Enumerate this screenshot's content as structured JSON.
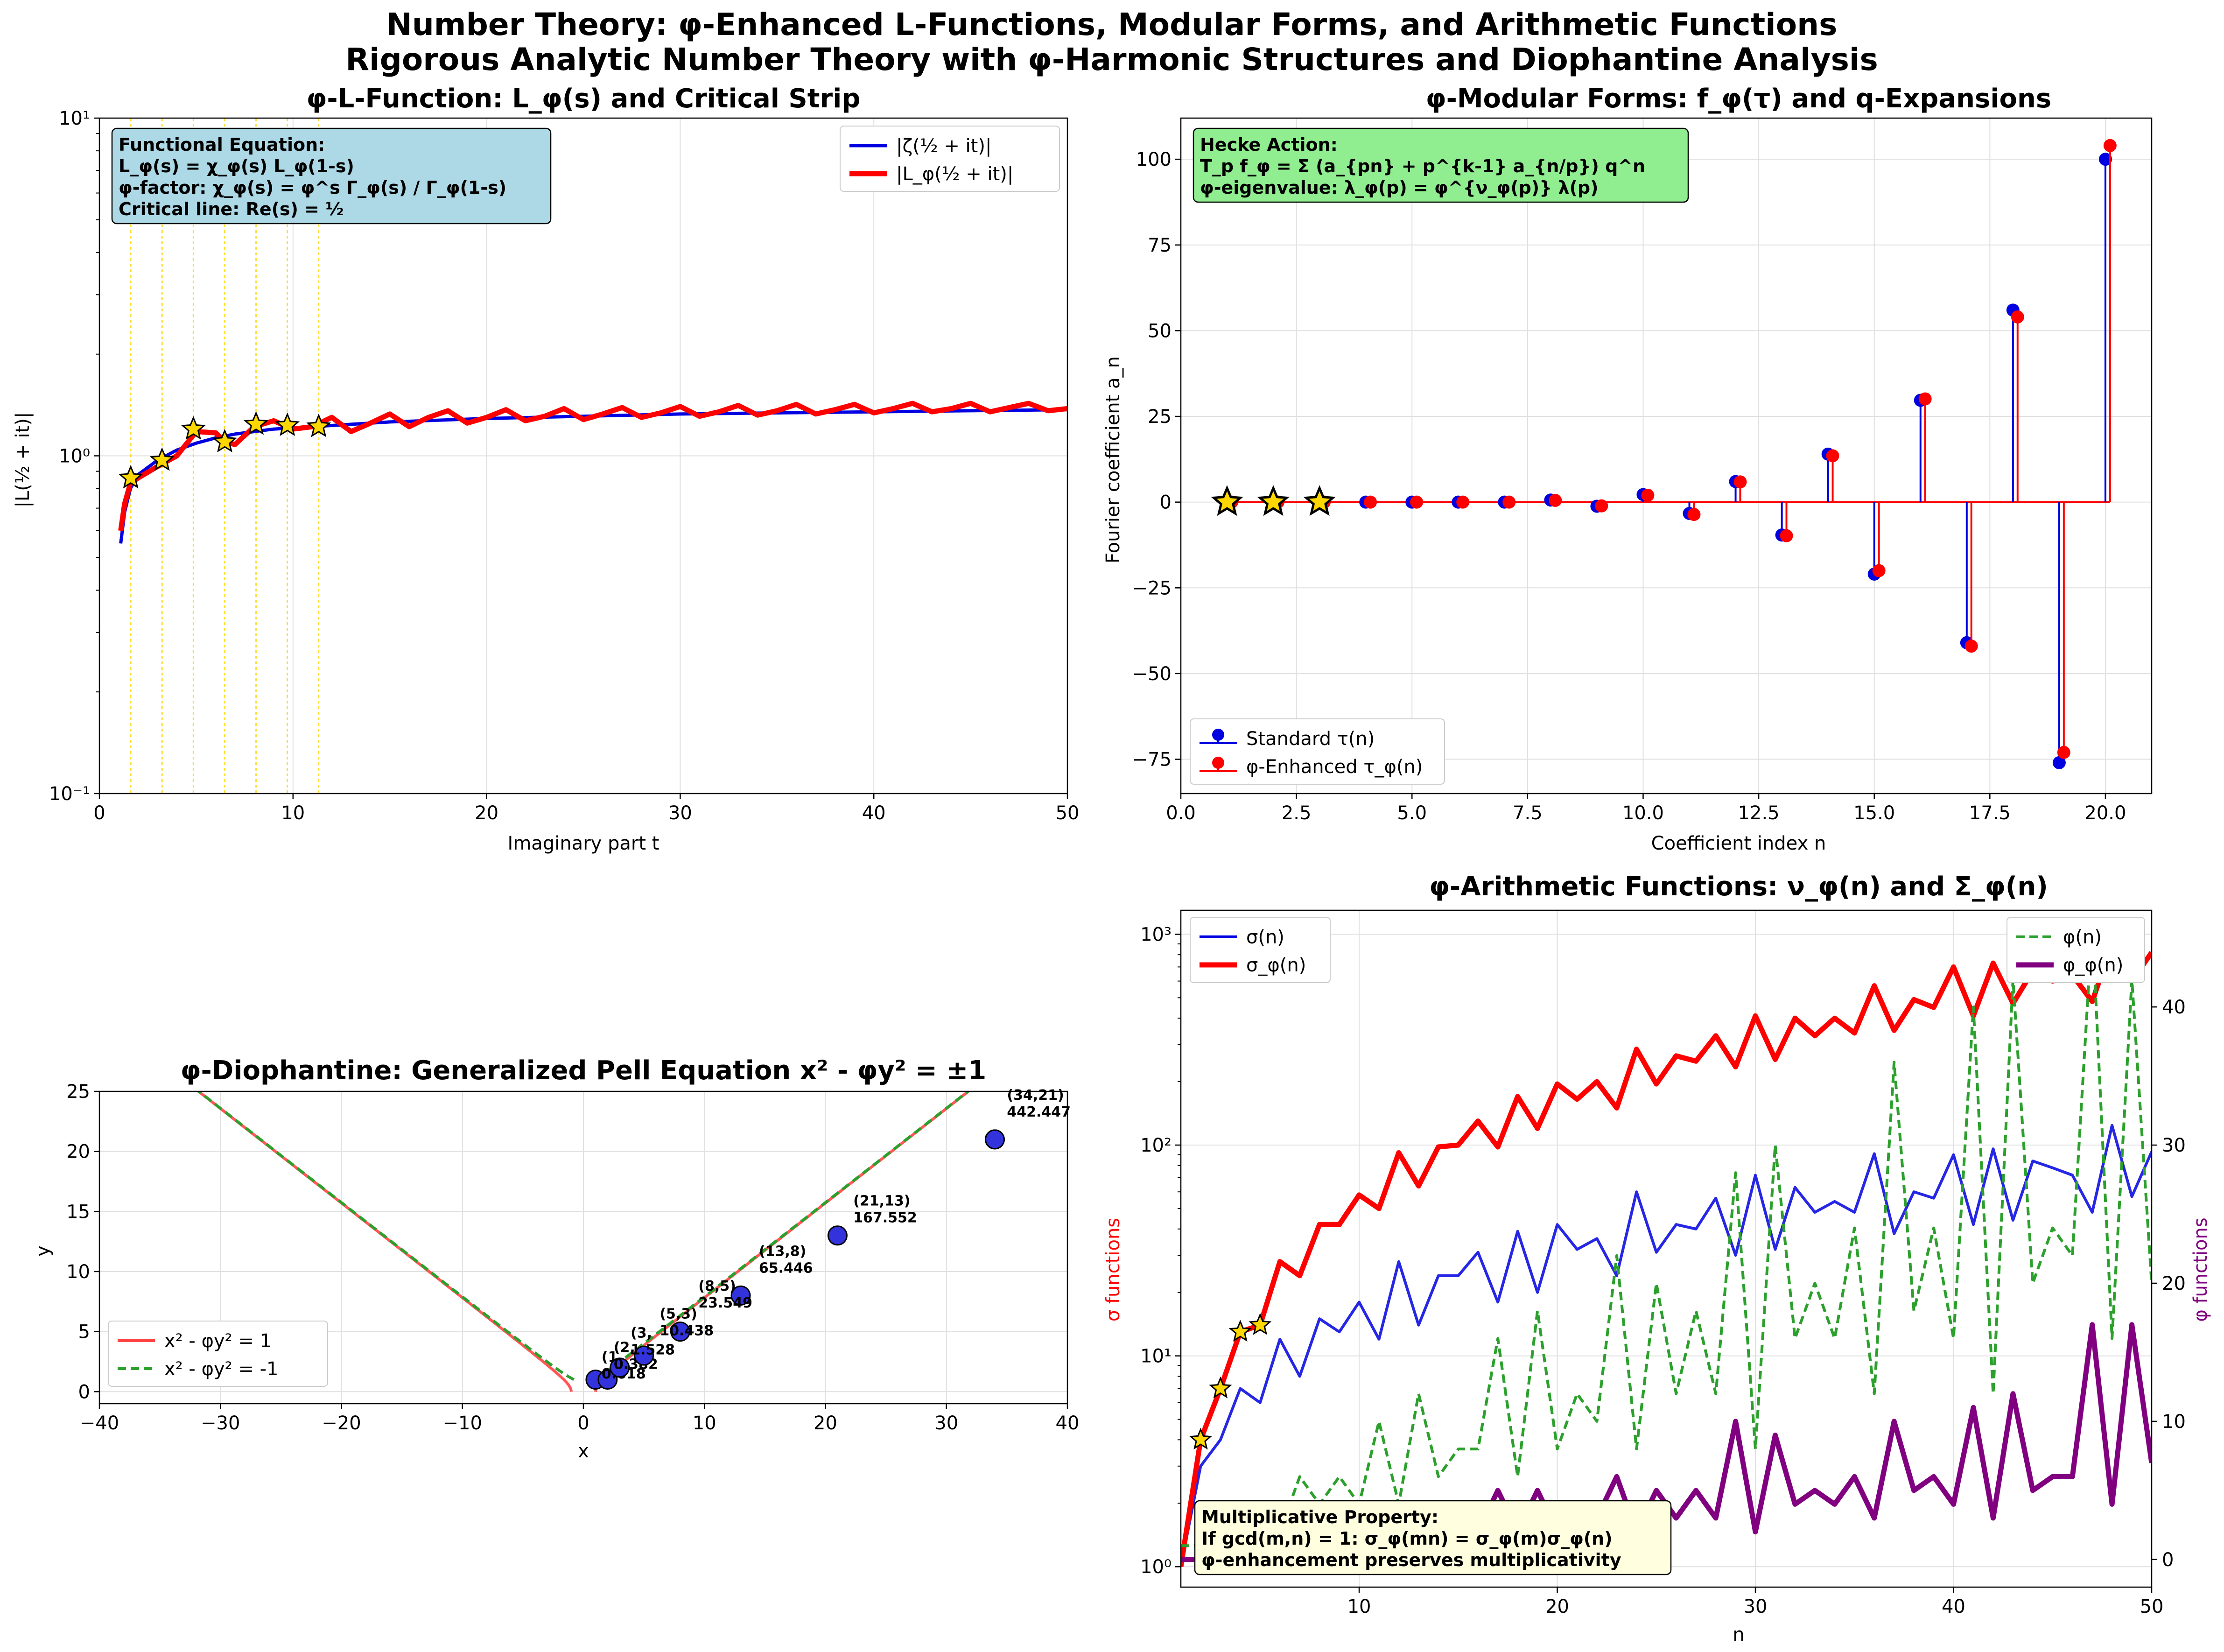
{
  "figure": {
    "title_line1": "Number Theory: φ-Enhanced L-Functions, Modular Forms, and Arithmetic Functions",
    "title_line2": "Rigorous Analytic Number Theory with φ-Harmonic Structures and Diophantine Analysis"
  },
  "colors": {
    "blue": "#0000e0",
    "red": "#ff0000",
    "green": "#2ca02c",
    "purple": "#800080",
    "gold": "#ffd700",
    "pell_red": "#ff4444",
    "info_blue": "#add8e6",
    "info_green": "#90ee90",
    "info_yellow": "#ffffe0"
  },
  "chart_data": [
    {
      "id": "lfunc",
      "type": "line",
      "title": "φ-L-Function: L_φ(s) and Critical Strip",
      "xlabel": "Imaginary part t",
      "ylabel": "|L(½ + it)|",
      "xlim": [
        0,
        50
      ],
      "ylim": [
        0.1,
        10
      ],
      "yscale": "log",
      "grid": true,
      "xticks": [
        "0",
        "10",
        "20",
        "30",
        "40",
        "50"
      ],
      "yticks": [
        "10⁻¹",
        "10⁰",
        "10¹"
      ],
      "legend": {
        "position": "top-right",
        "entries": [
          "|ζ(½ + it)|",
          "|L_φ(½ + it)|"
        ]
      },
      "info_box": [
        "Functional Equation:",
        "L_φ(s) = χ_φ(s) L_φ(1-s)",
        "φ-factor: χ_φ(s) = φ^s Γ_φ(s) / Γ_φ(1-s)",
        "Critical line: Re(s) = ½"
      ],
      "series": [
        {
          "name": "|ζ(½ + it)|",
          "color": "blue",
          "x": [
            1.1,
            1.3,
            1.6,
            2,
            3,
            4,
            5,
            6,
            7,
            8,
            9,
            10,
            12,
            15,
            20,
            25,
            30,
            35,
            40,
            45,
            50
          ],
          "y": [
            0.55,
            0.68,
            0.8,
            0.88,
            0.97,
            1.04,
            1.09,
            1.13,
            1.16,
            1.18,
            1.2,
            1.21,
            1.23,
            1.26,
            1.29,
            1.31,
            1.33,
            1.34,
            1.35,
            1.36,
            1.37
          ]
        },
        {
          "name": "|L_φ(½ + it)|",
          "color": "red",
          "x": [
            1.1,
            1.3,
            1.6,
            2,
            3,
            4,
            5,
            6,
            6.5,
            7,
            8,
            9,
            10,
            11,
            12,
            13,
            14,
            15,
            16,
            17,
            18,
            19,
            20,
            21,
            22,
            23,
            24,
            25,
            26,
            27,
            28,
            29,
            30,
            31,
            32,
            33,
            34,
            35,
            36,
            37,
            38,
            39,
            40,
            41,
            42,
            43,
            44,
            45,
            46,
            47,
            48,
            49,
            50
          ],
          "y": [
            0.6,
            0.72,
            0.83,
            0.86,
            0.93,
            1.0,
            1.18,
            1.17,
            1.1,
            1.08,
            1.22,
            1.27,
            1.2,
            1.22,
            1.3,
            1.18,
            1.25,
            1.33,
            1.22,
            1.3,
            1.36,
            1.25,
            1.3,
            1.37,
            1.27,
            1.31,
            1.38,
            1.28,
            1.33,
            1.39,
            1.3,
            1.34,
            1.4,
            1.31,
            1.35,
            1.41,
            1.32,
            1.36,
            1.42,
            1.33,
            1.37,
            1.42,
            1.34,
            1.38,
            1.43,
            1.35,
            1.38,
            1.43,
            1.35,
            1.39,
            1.43,
            1.36,
            1.38
          ]
        }
      ],
      "zeros_t": [
        1.618,
        3.236,
        4.854,
        6.472,
        8.09,
        9.708,
        11.326
      ],
      "zeros_y": [
        0.86,
        0.97,
        1.2,
        1.1,
        1.24,
        1.23,
        1.22
      ]
    },
    {
      "id": "modular",
      "type": "stem",
      "title": "φ-Modular Forms: f_φ(τ) and q-Expansions",
      "xlabel": "Coefficient index n",
      "ylabel": "Fourier coefficient a_n",
      "xlim": [
        0,
        21
      ],
      "ylim": [
        -85,
        112
      ],
      "grid": true,
      "xticks": [
        "0.0",
        "2.5",
        "5.0",
        "7.5",
        "10.0",
        "12.5",
        "15.0",
        "17.5",
        "20.0"
      ],
      "yticks": [
        "−75",
        "−50",
        "−25",
        "0",
        "25",
        "50",
        "75",
        "100"
      ],
      "legend": {
        "position": "bottom-left",
        "entries": [
          "Standard τ(n)",
          "φ-Enhanced τ_φ(n)"
        ]
      },
      "info_box": [
        "Hecke Action:",
        "T_p f_φ = Σ (a_{pn} + p^{k-1} a_{n/p}) q^n",
        "φ-eigenvalue: λ_φ(p) = φ^{ν_φ(p)} λ(p)"
      ],
      "n": [
        1,
        2,
        3,
        4,
        5,
        6,
        7,
        8,
        9,
        10,
        11,
        12,
        13,
        14,
        15,
        16,
        17,
        18,
        19,
        20
      ],
      "series": [
        {
          "name": "Standard τ(n)",
          "color": "blue",
          "values": [
            0,
            0,
            0,
            0,
            0,
            0,
            0,
            0.6,
            -1.2,
            2.2,
            -3.3,
            6,
            -9.6,
            14,
            -21,
            29.7,
            -41,
            56,
            -76,
            100
          ]
        },
        {
          "name": "φ-Enhanced τ_φ(n)",
          "color": "red",
          "values": [
            0,
            0,
            0,
            0,
            0,
            0,
            0,
            0.5,
            -1.1,
            2.0,
            -3.6,
            5.9,
            -9.8,
            13.5,
            -20,
            30.1,
            -42,
            54,
            -73,
            104
          ]
        }
      ],
      "star_n": [
        1,
        2,
        3
      ]
    },
    {
      "id": "pell",
      "type": "scatter",
      "title": "φ-Diophantine: Generalized Pell Equation x² - φy² = ±1",
      "xlabel": "x",
      "ylabel": "y",
      "xlim": [
        -40,
        40
      ],
      "ylim": [
        -1,
        25
      ],
      "grid": true,
      "xticks": [
        "−40",
        "−30",
        "−20",
        "−10",
        "0",
        "10",
        "20",
        "30",
        "40"
      ],
      "yticks": [
        "0",
        "5",
        "10",
        "15",
        "20",
        "25"
      ],
      "legend": {
        "position": "bottom-left",
        "entries": [
          "x² - φy² = 1",
          "x² - φy² = -1"
        ]
      },
      "points": [
        {
          "x": 1,
          "y": 1,
          "label1": "",
          "label2": ""
        },
        {
          "x": 2,
          "y": 1,
          "label1": "(1,",
          "label2": "0.618"
        },
        {
          "x": 3,
          "y": 2,
          "label1": "(2,",
          "label2": "0.382"
        },
        {
          "x": 5,
          "y": 3,
          "label1": "(3,",
          "label2": "1.528"
        },
        {
          "x": 8,
          "y": 5,
          "label1": "(5,3)",
          "label2": "10.438"
        },
        {
          "x": 13,
          "y": 8,
          "label1": "(8,5)",
          "label2": "23.549"
        },
        {
          "x": 21,
          "y": 13,
          "label1": "(13,8)",
          "label2": "65.446"
        },
        {
          "x": 34,
          "y": 21,
          "label1": "(21,13)",
          "label2": "167.552"
        },
        {
          "x": 34,
          "y": 21,
          "label1": "(34,21)",
          "label2": "442.447"
        }
      ]
    },
    {
      "id": "arith",
      "type": "line",
      "title": "φ-Arithmetic Functions: ν_φ(n) and Σ_φ(n)",
      "xlabel": "n",
      "ylabel_left": "σ functions",
      "ylabel_right": "φ functions",
      "xlim": [
        1,
        50
      ],
      "ylim_left": [
        0.8,
        1300
      ],
      "yscale_left": "log",
      "ylim_right": [
        -2,
        47
      ],
      "grid": true,
      "xticks": [
        "10",
        "20",
        "30",
        "40",
        "50"
      ],
      "yticks_left": [
        "10⁰",
        "10¹",
        "10²",
        "10³"
      ],
      "yticks_right": [
        "0",
        "10",
        "20",
        "30",
        "40"
      ],
      "legend_left": {
        "position": "top-left",
        "entries": [
          "σ(n)",
          "σ_φ(n)"
        ]
      },
      "legend_right": {
        "position": "top-right",
        "entries": [
          "φ(n)",
          "φ_φ(n)"
        ]
      },
      "info_box": [
        "Multiplicative Property:",
        "If gcd(m,n) = 1: σ_φ(mn) = σ_φ(m)σ_φ(n)",
        "φ-enhancement preserves multiplicativity"
      ],
      "n": [
        1,
        2,
        3,
        4,
        5,
        6,
        7,
        8,
        9,
        10,
        11,
        12,
        13,
        14,
        15,
        16,
        17,
        18,
        19,
        20,
        21,
        22,
        23,
        24,
        25,
        26,
        27,
        28,
        29,
        30,
        31,
        32,
        33,
        34,
        35,
        36,
        37,
        38,
        39,
        40,
        41,
        42,
        43,
        44,
        45,
        46,
        47,
        48,
        49,
        50
      ],
      "series": [
        {
          "name": "σ(n)",
          "color": "blue",
          "axis": "left",
          "values": [
            1,
            3,
            4,
            7,
            6,
            12,
            8,
            15,
            13,
            18,
            12,
            28,
            14,
            24,
            24,
            31,
            18,
            39,
            20,
            42,
            32,
            36,
            24,
            60,
            31,
            42,
            40,
            56,
            30,
            72,
            32,
            63,
            48,
            54,
            48,
            91,
            38,
            60,
            56,
            90,
            42,
            96,
            44,
            84,
            78,
            72,
            48,
            124,
            57,
            93
          ]
        },
        {
          "name": "σ_φ(n)",
          "color": "red",
          "axis": "left",
          "values": [
            1,
            4,
            7,
            13,
            14,
            28,
            24,
            42,
            42,
            58,
            50,
            92,
            64,
            98,
            100,
            130,
            98,
            170,
            120,
            195,
            165,
            200,
            150,
            285,
            195,
            265,
            250,
            330,
            235,
            410,
            255,
            400,
            330,
            400,
            340,
            570,
            350,
            490,
            450,
            700,
            410,
            730,
            470,
            670,
            600,
            640,
            480,
            900,
            600,
            820
          ]
        },
        {
          "name": "φ(n)",
          "color": "green",
          "axis": "right",
          "values": [
            1,
            1,
            2,
            2,
            4,
            2,
            6,
            4,
            6,
            4,
            10,
            4,
            12,
            6,
            8,
            8,
            16,
            6,
            18,
            8,
            12,
            10,
            22,
            8,
            20,
            12,
            18,
            12,
            28,
            8,
            30,
            16,
            20,
            16,
            24,
            12,
            36,
            18,
            24,
            16,
            40,
            12,
            42,
            20,
            24,
            22,
            46,
            16,
            42,
            20
          ]
        },
        {
          "name": "φ_φ(n)",
          "color": "purple",
          "axis": "right",
          "values": [
            0,
            0,
            0,
            0,
            1,
            0,
            2,
            1,
            2,
            1,
            3,
            1,
            3,
            2,
            2,
            2,
            5,
            2,
            5,
            2,
            3,
            3,
            6,
            2,
            5,
            3,
            5,
            3,
            10,
            2,
            9,
            4,
            5,
            4,
            6,
            3,
            10,
            5,
            6,
            4,
            11,
            3,
            12,
            5,
            6,
            6,
            17,
            4,
            17,
            7
          ]
        }
      ],
      "star_n": [
        2,
        3,
        4,
        5
      ]
    }
  ]
}
